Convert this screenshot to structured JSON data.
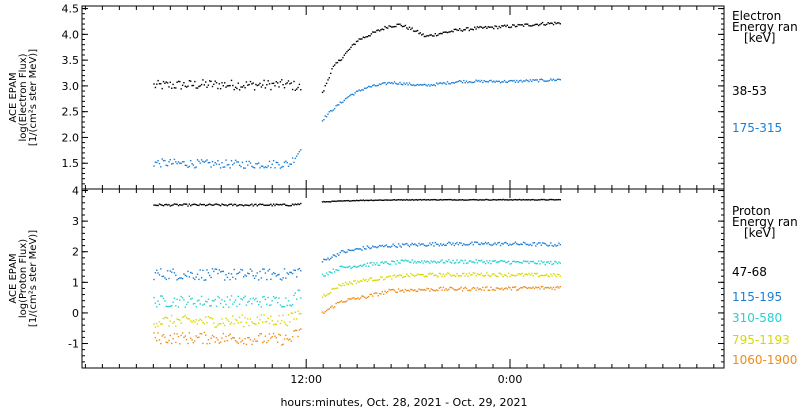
{
  "chart_data": [
    {
      "type": "scatter",
      "title": "",
      "ylabel_lines": [
        "ACE EPAM",
        "log(Electron Flux)",
        "[1/(cm²s ster MeV)]"
      ],
      "ylim": [
        1.0,
        4.55
      ],
      "yticks": [
        1.5,
        2.0,
        2.5,
        3.0,
        3.5,
        4.0,
        4.5
      ],
      "ytick_labels": [
        "1.5",
        "2.0",
        "2.5",
        "3.0",
        "3.5",
        "4.0",
        "4.5"
      ],
      "legend_title": [
        "Electron",
        "Energy ran",
        "[keV]"
      ],
      "series": [
        {
          "name": "38-53",
          "color": "#000000",
          "points": [
            [
              -9.0,
              3.02
            ],
            [
              -6.0,
              3.04
            ],
            [
              -3.0,
              3.03
            ],
            [
              -1.0,
              3.04
            ],
            [
              0.9,
              2.85
            ],
            [
              1.5,
              3.35
            ],
            [
              3.0,
              3.9
            ],
            [
              4.8,
              4.17
            ],
            [
              5.5,
              4.2
            ],
            [
              6.4,
              4.08
            ],
            [
              7.0,
              3.97
            ],
            [
              8.0,
              4.04
            ],
            [
              9.0,
              4.1
            ],
            [
              10.0,
              4.13
            ],
            [
              12.0,
              4.17
            ],
            [
              14.0,
              4.22
            ],
            [
              15.0,
              4.23
            ]
          ]
        },
        {
          "name": "175-315",
          "color": "#1c7fd6",
          "points": [
            [
              -9.0,
              1.52
            ],
            [
              -6.0,
              1.5
            ],
            [
              -3.0,
              1.49
            ],
            [
              -1.0,
              1.5
            ],
            [
              0.9,
              2.35
            ],
            [
              1.5,
              2.55
            ],
            [
              2.5,
              2.82
            ],
            [
              3.5,
              2.98
            ],
            [
              5.0,
              3.08
            ],
            [
              6.5,
              3.03
            ],
            [
              7.0,
              3.02
            ],
            [
              8.0,
              3.06
            ],
            [
              9.0,
              3.1
            ],
            [
              12.0,
              3.1
            ],
            [
              14.0,
              3.12
            ],
            [
              15.0,
              3.14
            ]
          ]
        }
      ]
    },
    {
      "type": "scatter",
      "title": "",
      "ylabel_lines": [
        "ACE EPAM",
        "log(Proton Flux)",
        "[1/(cm²s ster MeV)]"
      ],
      "ylim": [
        -1.8,
        4.05
      ],
      "yticks": [
        -1,
        0,
        1,
        2,
        3,
        4
      ],
      "ytick_labels": [
        "-1",
        "0",
        "1",
        "2",
        "3",
        "4"
      ],
      "legend_title": [
        "Proton",
        "Energy ran",
        "[keV]"
      ],
      "series": [
        {
          "name": "47-68",
          "color": "#000000",
          "points": [
            [
              -9.0,
              3.55
            ],
            [
              -5.0,
              3.55
            ],
            [
              -1.0,
              3.55
            ],
            [
              0.9,
              3.65
            ],
            [
              3.0,
              3.7
            ],
            [
              6.0,
              3.72
            ],
            [
              10.0,
              3.72
            ],
            [
              15.0,
              3.72
            ]
          ]
        },
        {
          "name": "115-195",
          "color": "#1c7fd6",
          "points": [
            [
              -9.0,
              1.3
            ],
            [
              -5.0,
              1.27
            ],
            [
              -1.0,
              1.28
            ],
            [
              0.9,
              1.7
            ],
            [
              2.0,
              2.0
            ],
            [
              3.5,
              2.15
            ],
            [
              5.0,
              2.22
            ],
            [
              8.0,
              2.28
            ],
            [
              12.0,
              2.28
            ],
            [
              15.0,
              2.25
            ]
          ]
        },
        {
          "name": "310-580",
          "color": "#24d0d0",
          "points": [
            [
              -9.0,
              0.4
            ],
            [
              -5.0,
              0.4
            ],
            [
              -1.0,
              0.4
            ],
            [
              0.9,
              1.25
            ],
            [
              2.0,
              1.5
            ],
            [
              3.5,
              1.6
            ],
            [
              6.0,
              1.7
            ],
            [
              10.0,
              1.7
            ],
            [
              15.0,
              1.65
            ]
          ]
        },
        {
          "name": "795-1193",
          "color": "#d8d800",
          "points": [
            [
              -9.0,
              -0.25
            ],
            [
              -5.0,
              -0.25
            ],
            [
              -1.0,
              -0.2
            ],
            [
              0.9,
              0.55
            ],
            [
              2.0,
              0.95
            ],
            [
              3.5,
              1.1
            ],
            [
              6.0,
              1.25
            ],
            [
              10.0,
              1.28
            ],
            [
              15.0,
              1.25
            ]
          ]
        },
        {
          "name": "1060-1900",
          "color": "#ee8c1c",
          "points": [
            [
              -9.0,
              -0.8
            ],
            [
              -5.0,
              -0.8
            ],
            [
              -1.0,
              -0.85
            ],
            [
              0.9,
              0.0
            ],
            [
              2.0,
              0.4
            ],
            [
              3.5,
              0.55
            ],
            [
              5.0,
              0.75
            ],
            [
              8.0,
              0.8
            ],
            [
              12.0,
              0.82
            ],
            [
              15.0,
              0.85
            ]
          ]
        }
      ]
    }
  ],
  "xaxis": {
    "xlim": [
      -13.2,
      24.6
    ],
    "ticks": [
      0,
      12
    ],
    "tick_labels": [
      "12:00",
      "0:00"
    ],
    "minor_step": 1,
    "label": "hours:minutes, Oct. 28, 2021 - Oct. 29, 2021"
  },
  "data_gap": [
    -0.3,
    0.9
  ]
}
